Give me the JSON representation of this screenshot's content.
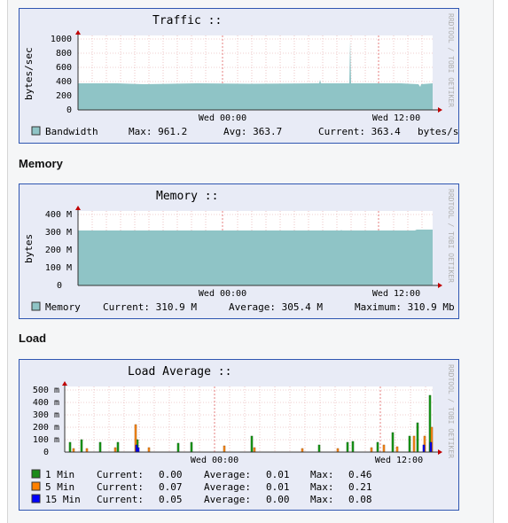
{
  "watermark": "RRDTOOL / TOBI OETIKER",
  "sections": {
    "memory": "Memory",
    "load": "Load"
  },
  "traffic": {
    "title": "Traffic ::",
    "ylabel": "bytes/sec",
    "yticks": [
      "1000",
      "800",
      "600",
      "400",
      "200",
      "0"
    ],
    "xticks": [
      "Wed 00:00",
      "Wed 12:00"
    ],
    "legend": {
      "name": "Bandwidth",
      "max": "Max: 961.2",
      "avg": "Avg: 363.7",
      "current": "Current: 363.4",
      "unit": "bytes/s"
    },
    "color": "#8fc4c6"
  },
  "memory": {
    "title": "Memory ::",
    "ylabel": "bytes",
    "yticks": [
      "400 M",
      "300 M",
      "200 M",
      "100 M",
      "0"
    ],
    "xticks": [
      "Wed 00:00",
      "Wed 12:00"
    ],
    "legend": {
      "name": "Memory",
      "current": "Current: 310.9 M",
      "avg": "Average: 305.4 M",
      "max": "Maximum: 310.9 Mb"
    },
    "color": "#8fc4c6"
  },
  "load": {
    "title": "Load Average ::",
    "yticks": [
      "500 m",
      "400 m",
      "300 m",
      "200 m",
      "100 m",
      "0"
    ],
    "xticks": [
      "Wed 00:00",
      "Wed 12:00"
    ],
    "legend": [
      {
        "name": "1 Min",
        "current": "Current:",
        "current_val": "0.00",
        "avg": "Average:",
        "avg_val": "0.01",
        "max": "Max:",
        "max_val": "0.46",
        "color": "#1a8a1a"
      },
      {
        "name": "5 Min",
        "current": "Current:",
        "current_val": "0.07",
        "avg": "Average:",
        "avg_val": "0.01",
        "max": "Max:",
        "max_val": "0.21",
        "color": "#ff8000"
      },
      {
        "name": "15 Min",
        "current": "Current:",
        "current_val": "0.05",
        "avg": "Average:",
        "avg_val": "0.00",
        "max": "Max:",
        "max_val": "0.08",
        "color": "#0000ff"
      }
    ]
  }
}
